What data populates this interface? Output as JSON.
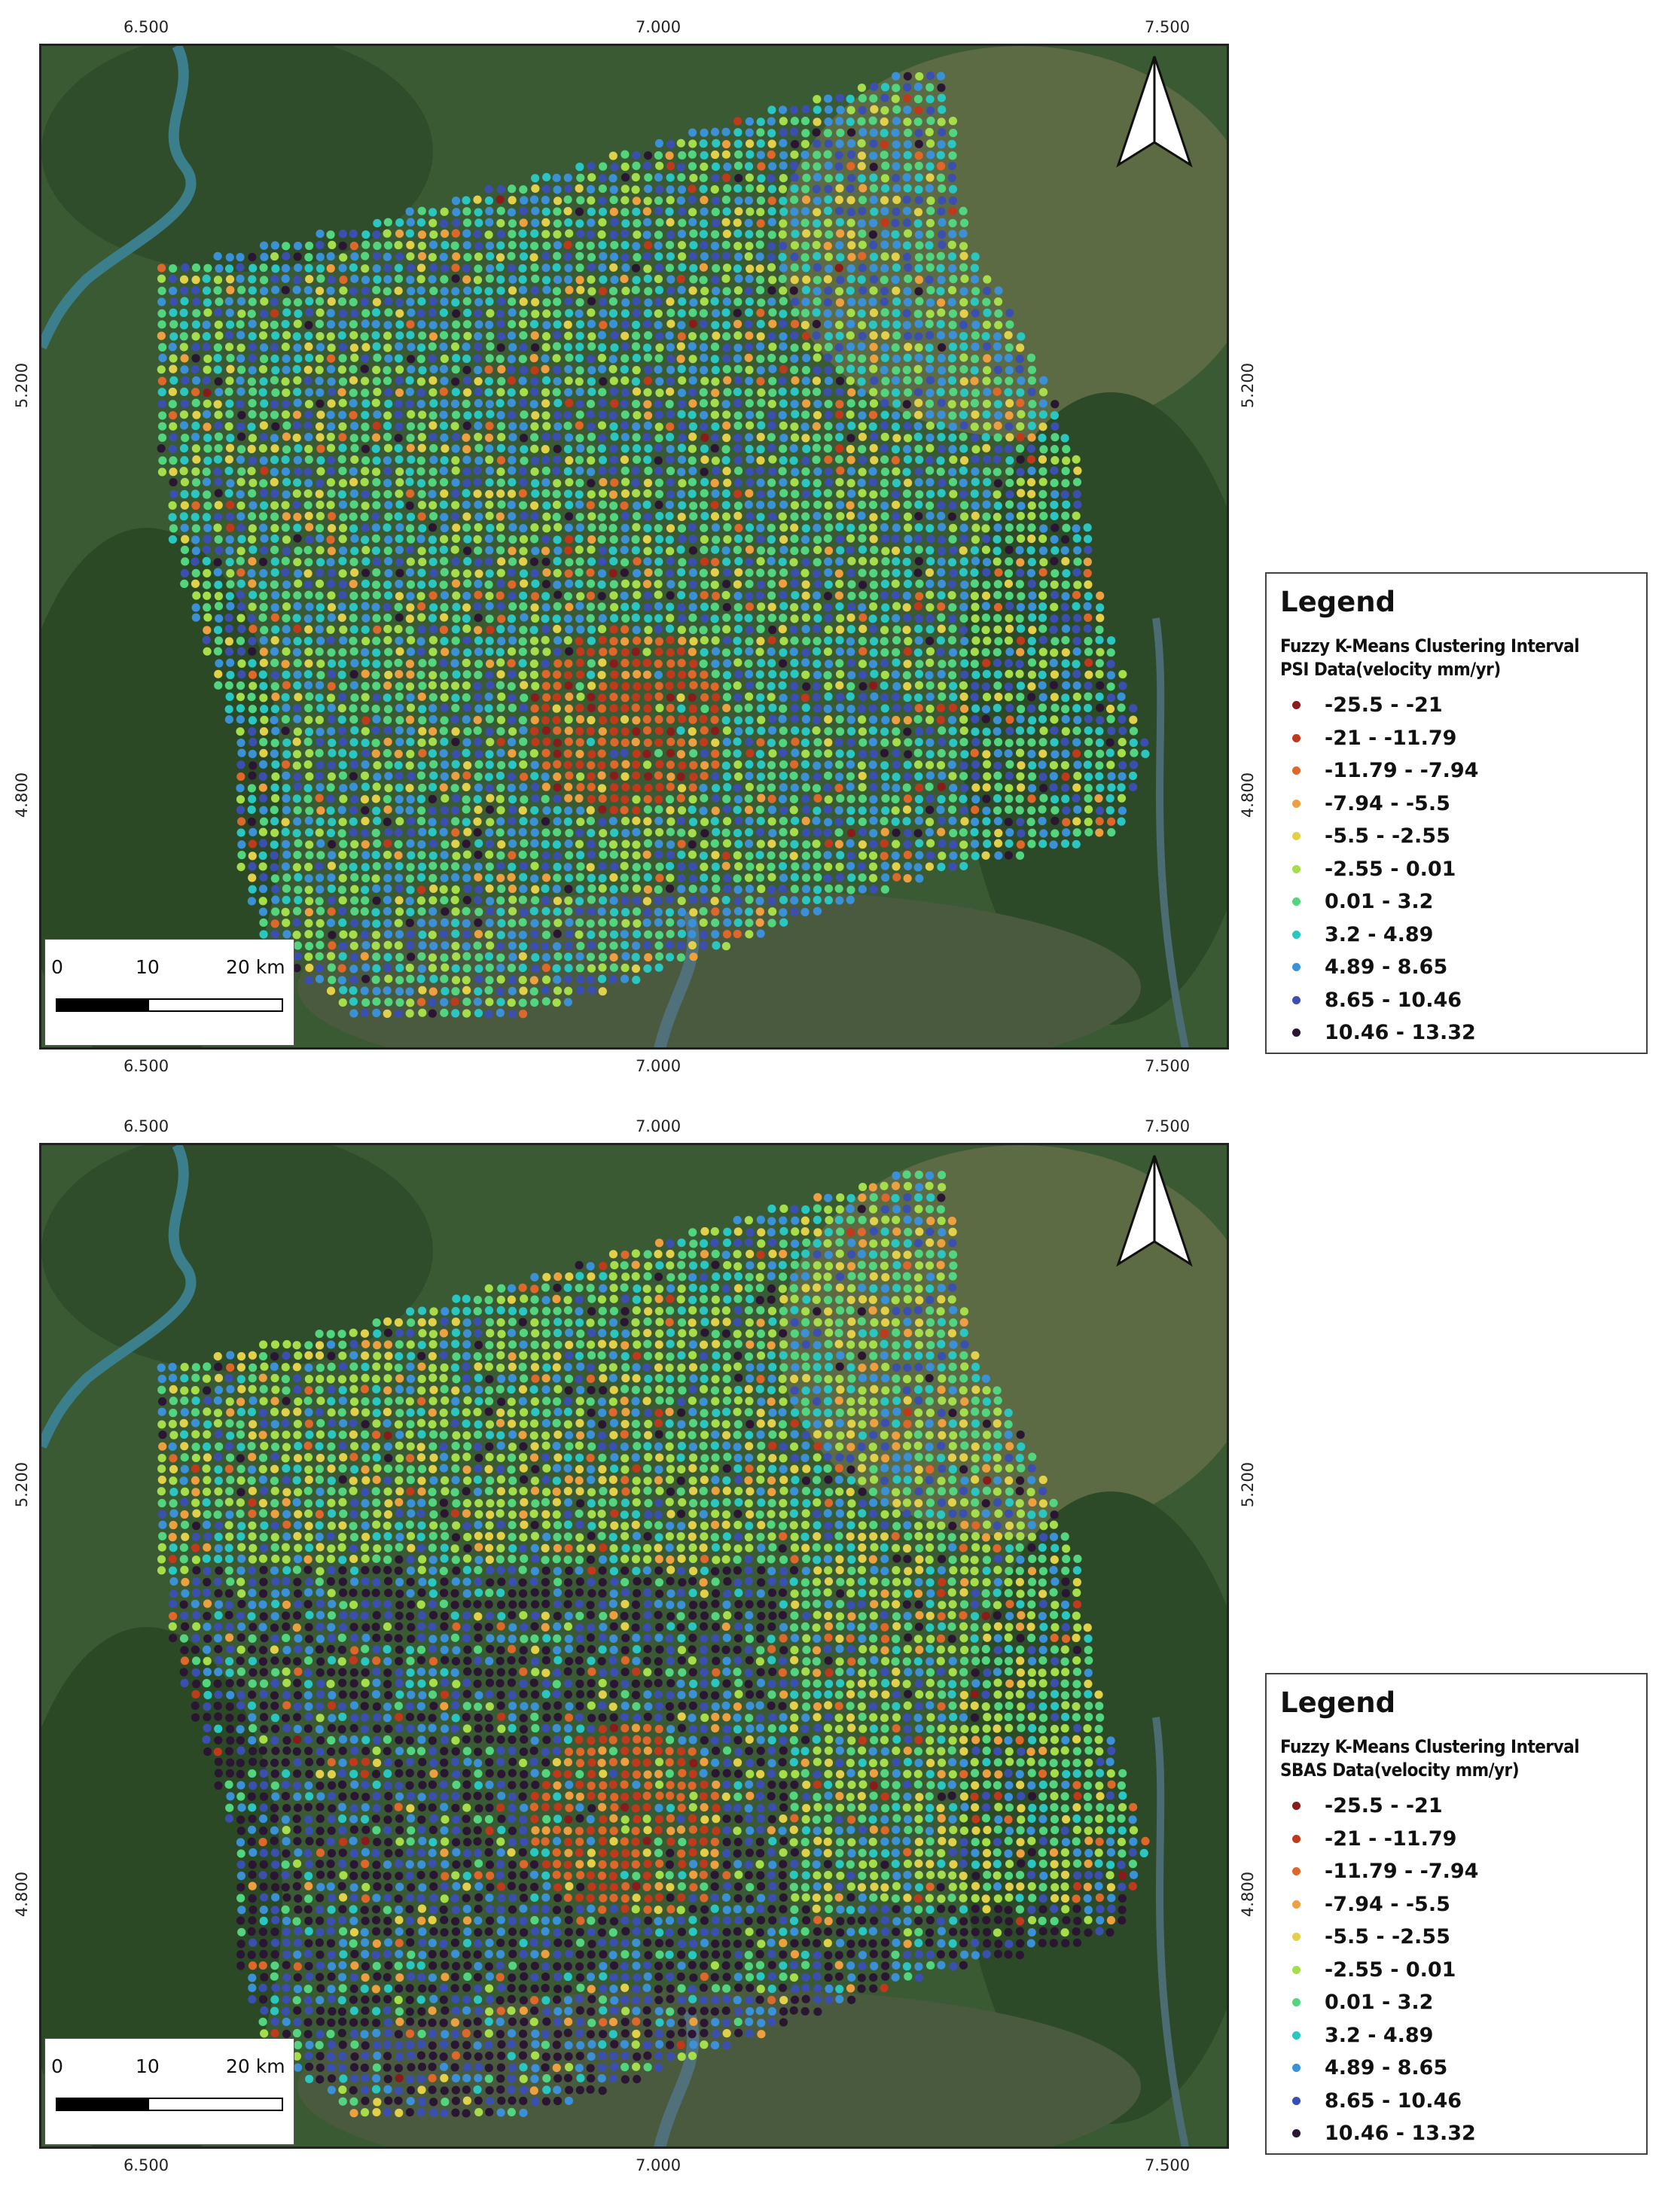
{
  "axes": {
    "x_ticks": [
      "6.500",
      "7.000",
      "7.500"
    ],
    "y_ticks": [
      "5.200",
      "4.800"
    ]
  },
  "scalebar": {
    "labels": [
      "0",
      "10",
      "20 km"
    ]
  },
  "legend_classes": [
    {
      "label": "-25.5 - -21",
      "color": "#8b1a1a"
    },
    {
      "label": "-21 - -11.79",
      "color": "#c0391b"
    },
    {
      "label": "-11.79 - -7.94",
      "color": "#e0672a"
    },
    {
      "label": "-7.94 - -5.5",
      "color": "#eea040"
    },
    {
      "label": "-5.5 - -2.55",
      "color": "#e3d04a"
    },
    {
      "label": "-2.55 - 0.01",
      "color": "#a6dd4a"
    },
    {
      "label": "0.01 - 3.2",
      "color": "#52d57e"
    },
    {
      "label": "3.2 - 4.89",
      "color": "#2ac7c2"
    },
    {
      "label": "4.89 - 8.65",
      "color": "#3b91d8"
    },
    {
      "label": "8.65 - 10.46",
      "color": "#3b4fb0"
    },
    {
      "label": "10.46 - 13.32",
      "color": "#2a1533"
    }
  ],
  "panels": [
    {
      "legend_title": "Legend",
      "legend_subtitle_1": "Fuzzy K-Means Clustering Interval",
      "legend_subtitle_2": "PSI Data(velocity mm/yr)"
    },
    {
      "legend_title": "Legend",
      "legend_subtitle_1": "Fuzzy K-Means Clustering Interval",
      "legend_subtitle_2": "SBAS Data(velocity mm/yr)"
    }
  ],
  "colors": {
    "satellite_forest": "#2f4d2a",
    "satellite_field": "#6c7a4f",
    "river": "#3b7f8c"
  }
}
